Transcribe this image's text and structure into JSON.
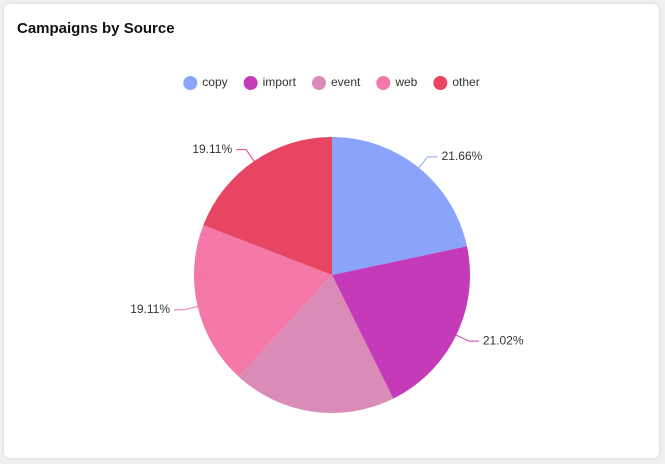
{
  "chart_data": {
    "type": "pie",
    "title": "Campaigns by Source",
    "categories": [
      "copy",
      "import",
      "event",
      "web",
      "other"
    ],
    "values": [
      21.66,
      21.02,
      19.1,
      19.11,
      19.11
    ],
    "value_labels": [
      "21.66%",
      "21.02%",
      null,
      "19.11%",
      "19.11%"
    ],
    "colors": [
      "#8aa4fb",
      "#c43ab8",
      "#db8bb8",
      "#f478a8",
      "#e84563"
    ],
    "legend": "top"
  }
}
